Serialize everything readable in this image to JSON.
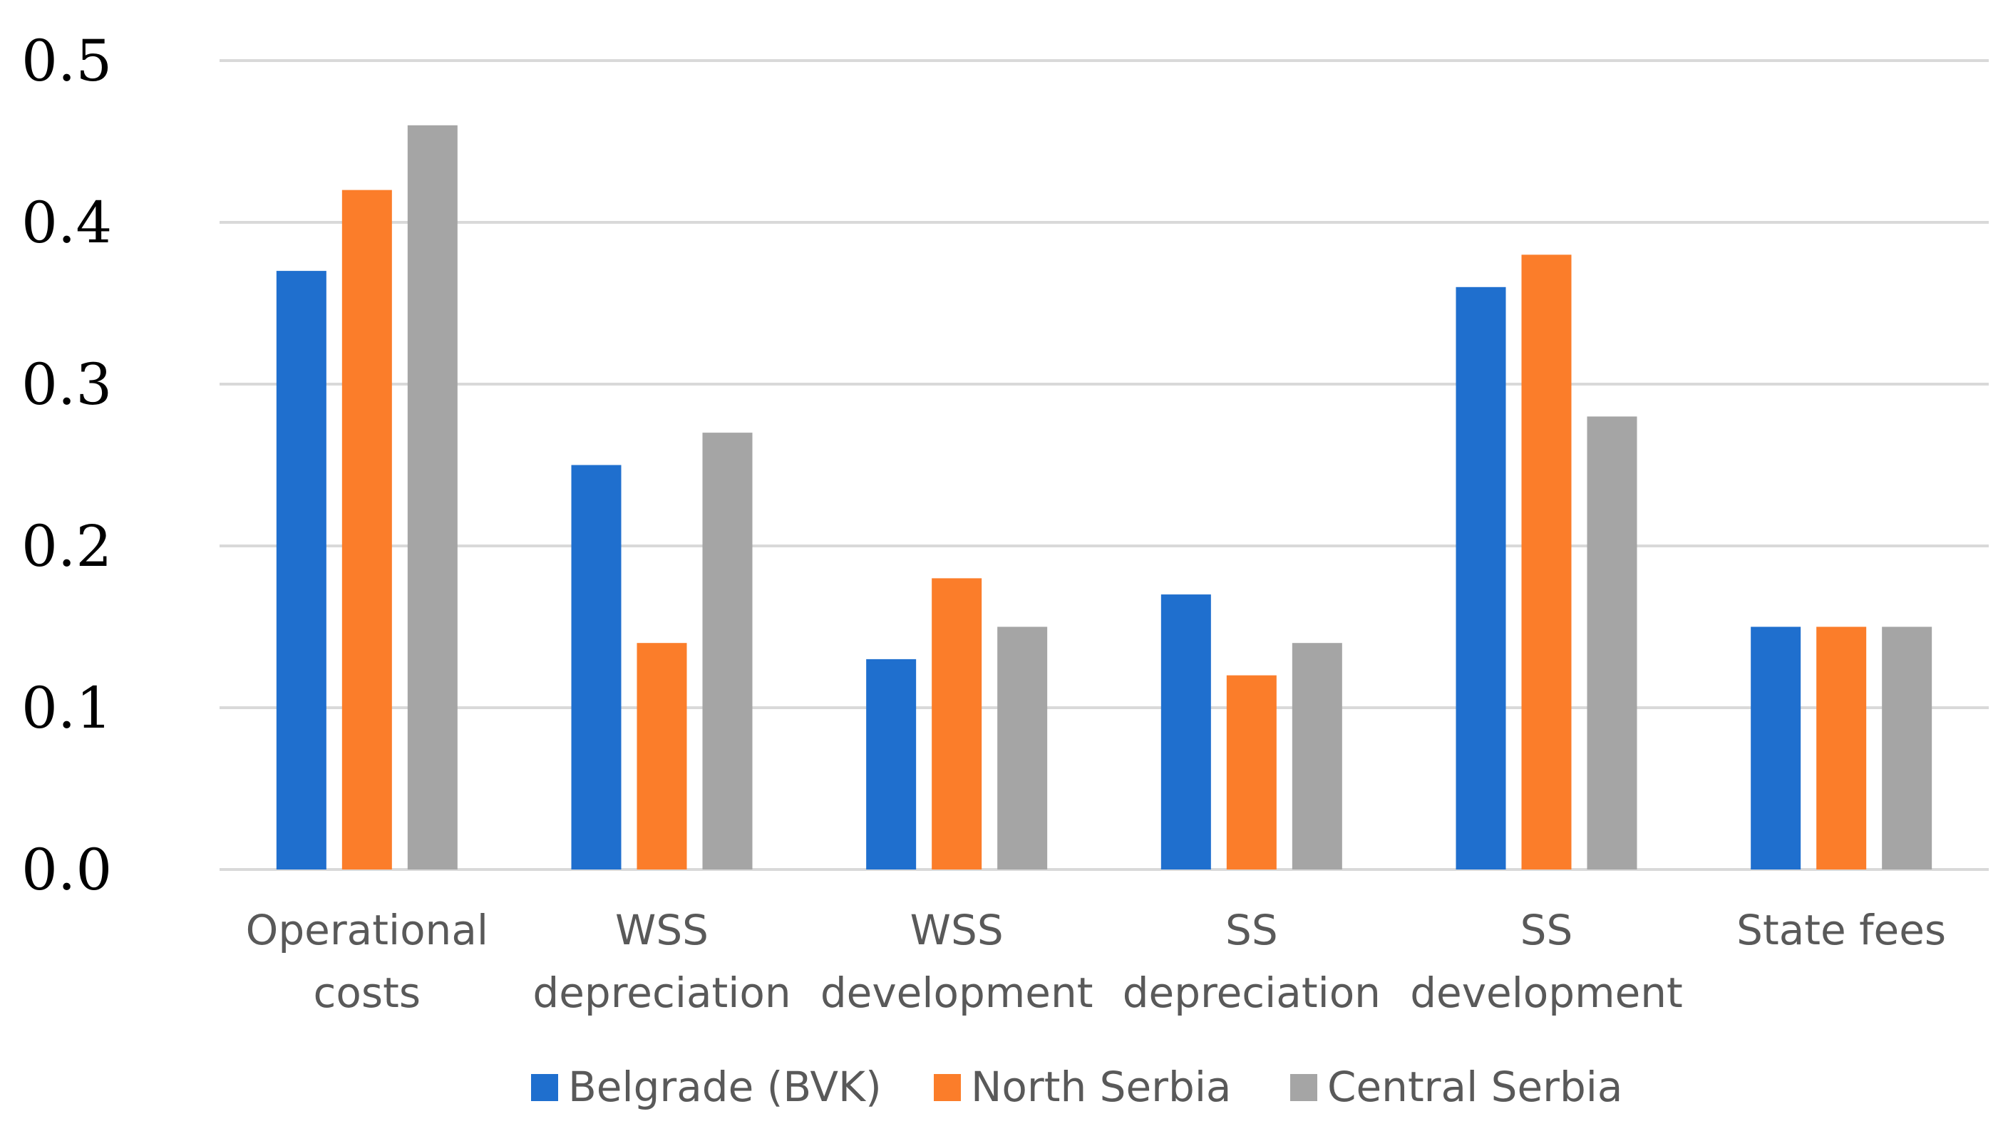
{
  "chart_data": {
    "type": "bar",
    "title": "",
    "xlabel": "",
    "ylabel": "",
    "ylim": [
      0,
      0.5
    ],
    "yticks": [
      "0.0",
      "0.1",
      "0.2",
      "0.3",
      "0.4",
      "0.5"
    ],
    "grid": true,
    "legend_position": "bottom",
    "categories": [
      [
        "Operational",
        "costs"
      ],
      [
        "WSS",
        "depreciation"
      ],
      [
        "WSS",
        "development"
      ],
      [
        "SS",
        "depreciation"
      ],
      [
        "SS",
        "development"
      ],
      [
        "State fees"
      ]
    ],
    "series": [
      {
        "name": "Belgrade (BVK)",
        "color": "#1f6fce",
        "values": [
          0.37,
          0.25,
          0.13,
          0.17,
          0.36,
          0.15
        ]
      },
      {
        "name": "North Serbia",
        "color": "#fb7d2a",
        "values": [
          0.42,
          0.14,
          0.18,
          0.12,
          0.38,
          0.15
        ]
      },
      {
        "name": "Central Serbia",
        "color": "#a5a5a5",
        "values": [
          0.46,
          0.27,
          0.15,
          0.14,
          0.28,
          0.15
        ]
      }
    ]
  }
}
